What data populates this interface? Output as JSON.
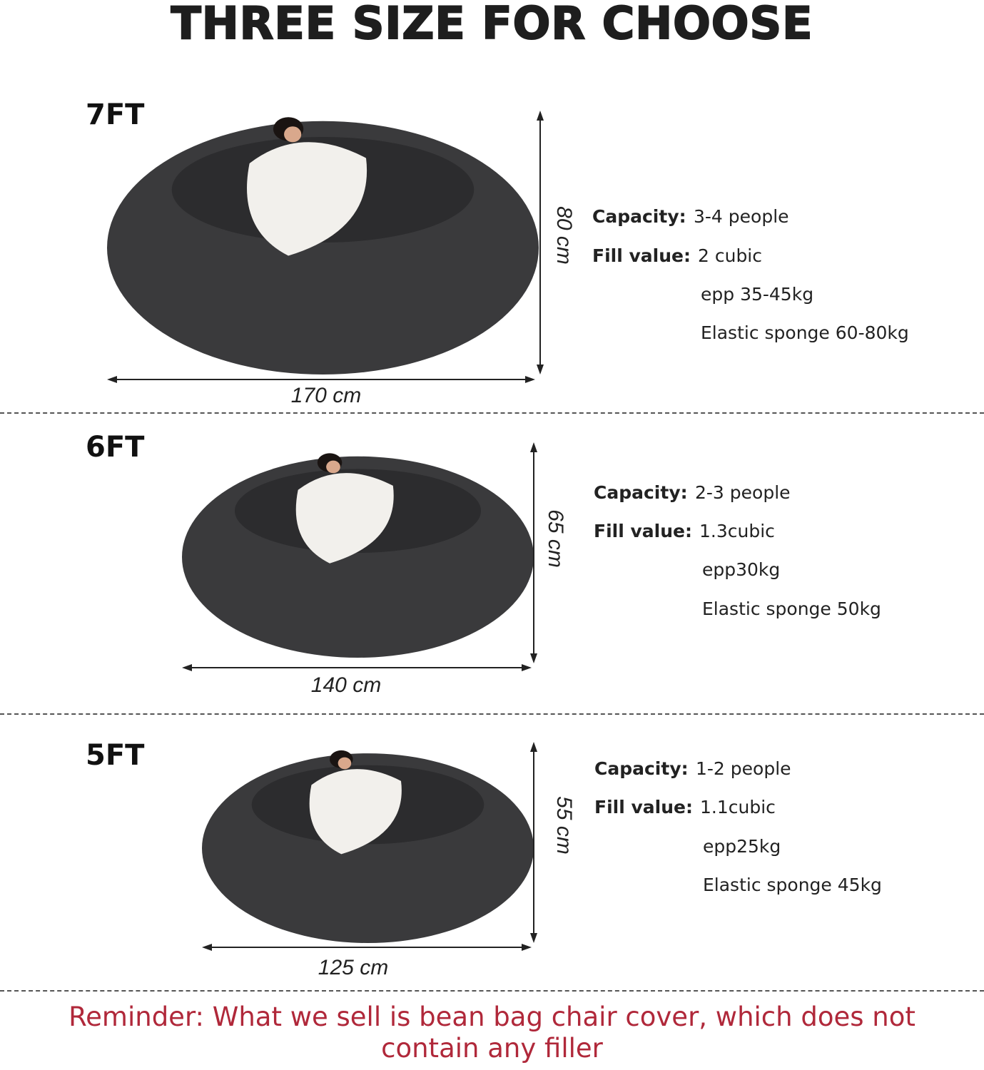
{
  "title": "THREE SIZE FOR CHOOSE",
  "colors": {
    "bag": "#3a3a3c",
    "blanket": "#f2f0ec",
    "reminder": "#b0283a"
  },
  "sizes": [
    {
      "label": "7FT",
      "height": "80 cm",
      "width": "170 cm",
      "capacity_label": "Capacity:",
      "capacity": "3-4 people",
      "fill_label": "Fill value:",
      "fill": "2 cubic",
      "epp": "epp 35-45kg",
      "sponge": "Elastic sponge 60-80kg"
    },
    {
      "label": "6FT",
      "height": "65 cm",
      "width": "140 cm",
      "capacity_label": "Capacity:",
      "capacity": "2-3 people",
      "fill_label": "Fill value:",
      "fill": "1.3cubic",
      "epp": "epp30kg",
      "sponge": "Elastic sponge 50kg"
    },
    {
      "label": "5FT",
      "height": "55 cm",
      "width": "125 cm",
      "capacity_label": "Capacity:",
      "capacity": "1-2 people",
      "fill_label": "Fill value:",
      "fill": "1.1cubic",
      "epp": "epp25kg",
      "sponge": "Elastic sponge 45kg"
    }
  ],
  "reminder": {
    "line1": "Reminder: What we sell is bean bag chair cover, which does not",
    "line2": "contain any filler"
  }
}
